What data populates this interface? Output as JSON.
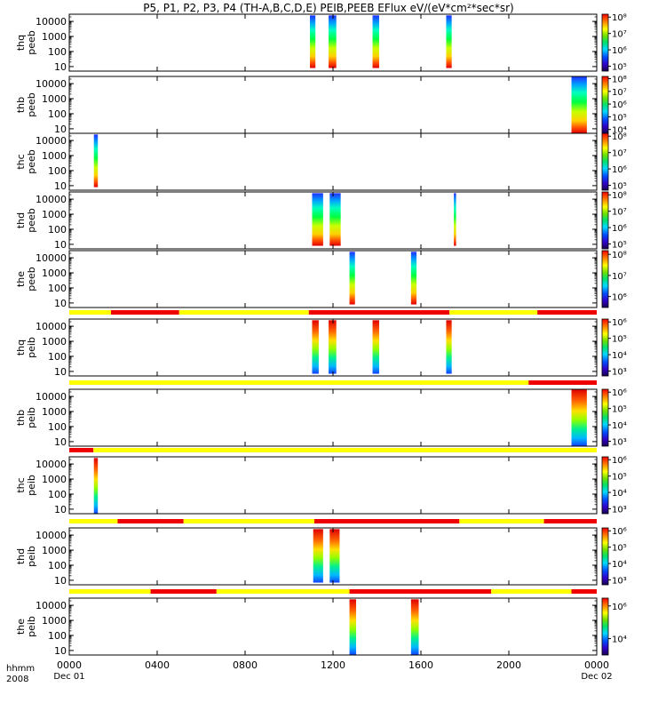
{
  "chart_data": {
    "type": "heatmap",
    "title": "P5, P1, P2, P3, P4 (TH-A,B,C,D,E) PEIB,PEEB EFlux eV/(eV*cm²*sec*sr)",
    "time_axis": {
      "label_top": "hhmm",
      "label_bottom": "2008",
      "range_hours": [
        0,
        24
      ],
      "ticks": [
        {
          "hours": 0,
          "label": "0000",
          "sublabel": "Dec 01"
        },
        {
          "hours": 4,
          "label": "0400",
          "sublabel": ""
        },
        {
          "hours": 8,
          "label": "0800",
          "sublabel": ""
        },
        {
          "hours": 12,
          "label": "1200",
          "sublabel": ""
        },
        {
          "hours": 16,
          "label": "1600",
          "sublabel": ""
        },
        {
          "hours": 20,
          "label": "2000",
          "sublabel": ""
        },
        {
          "hours": 24,
          "label": "0000",
          "sublabel": "Dec 02"
        }
      ]
    },
    "y_axis": {
      "scale": "log",
      "range_eV": [
        5,
        30000
      ],
      "ticks": [
        {
          "value": 10,
          "label": "10"
        },
        {
          "value": 100,
          "label": "100"
        },
        {
          "value": 1000,
          "label": "1000"
        },
        {
          "value": 10000,
          "label": "10000"
        }
      ]
    },
    "mode_bar_colors": {
      "yellow": "#ffff00",
      "red": "#ee0000"
    },
    "panels": [
      {
        "sc": "thq",
        "inst": "peeb",
        "cbar_range": [
          50000.0,
          150000000.0
        ],
        "cbar_ticks": [
          {
            "exp": 8,
            "label": "10⁸"
          },
          {
            "exp": 7,
            "label": "10⁷"
          },
          {
            "exp": 6,
            "label": "10⁶"
          },
          {
            "exp": 5,
            "label": "10⁵"
          }
        ],
        "mode_bar": [],
        "data_blocks": [
          {
            "start_h": 10.95,
            "end_h": 11.2,
            "low_eV": 8,
            "high_eV": 25000
          },
          {
            "start_h": 11.8,
            "end_h": 12.15,
            "low_eV": 8,
            "high_eV": 25000
          },
          {
            "start_h": 13.8,
            "end_h": 14.1,
            "low_eV": 8,
            "high_eV": 25000
          },
          {
            "start_h": 17.15,
            "end_h": 17.4,
            "low_eV": 8,
            "high_eV": 25000
          }
        ]
      },
      {
        "sc": "thb",
        "inst": "peeb",
        "cbar_range": [
          5000.0,
          150000000.0
        ],
        "cbar_ticks": [
          {
            "exp": 8,
            "label": "10⁸"
          },
          {
            "exp": 7,
            "label": "10⁷"
          },
          {
            "exp": 6,
            "label": "10⁶"
          },
          {
            "exp": 5,
            "label": "10⁵"
          },
          {
            "exp": 4,
            "label": "10⁴"
          }
        ],
        "mode_bar": [],
        "data_blocks": [
          {
            "start_h": 22.85,
            "end_h": 23.55,
            "low_eV": 5,
            "high_eV": 30000
          }
        ]
      },
      {
        "sc": "thc",
        "inst": "peeb",
        "cbar_range": [
          50000.0,
          150000000.0
        ],
        "cbar_ticks": [
          {
            "exp": 8,
            "label": "10⁸"
          },
          {
            "exp": 7,
            "label": "10⁷"
          },
          {
            "exp": 6,
            "label": "10⁶"
          },
          {
            "exp": 5,
            "label": "10⁵"
          }
        ],
        "mode_bar": [],
        "data_blocks": [
          {
            "start_h": 1.12,
            "end_h": 1.3,
            "low_eV": 8,
            "high_eV": 25000
          }
        ]
      },
      {
        "sc": "thd",
        "inst": "peeb",
        "cbar_range": [
          50000.0,
          150000000.0
        ],
        "cbar_ticks": [
          {
            "exp": 8,
            "label": "10⁸"
          },
          {
            "exp": 7,
            "label": "10⁷"
          },
          {
            "exp": 6,
            "label": "10⁶"
          },
          {
            "exp": 5,
            "label": "10⁵"
          }
        ],
        "mode_bar": [],
        "data_blocks": [
          {
            "start_h": 11.05,
            "end_h": 11.55,
            "low_eV": 8,
            "high_eV": 25000
          },
          {
            "start_h": 11.85,
            "end_h": 12.35,
            "low_eV": 8,
            "high_eV": 25000
          },
          {
            "start_h": 17.5,
            "end_h": 17.6,
            "low_eV": 8,
            "high_eV": 25000
          }
        ]
      },
      {
        "sc": "the",
        "inst": "peeb",
        "cbar_range": [
          300000.0,
          150000000.0
        ],
        "cbar_ticks": [
          {
            "exp": 8,
            "label": "10⁸"
          },
          {
            "exp": 7,
            "label": "10⁷"
          },
          {
            "exp": 6,
            "label": "10⁶"
          }
        ],
        "mode_bar": [],
        "data_blocks": [
          {
            "start_h": 12.75,
            "end_h": 13.0,
            "low_eV": 8,
            "high_eV": 25000
          },
          {
            "start_h": 15.55,
            "end_h": 15.8,
            "low_eV": 8,
            "high_eV": 25000
          }
        ]
      },
      {
        "sc": "thq",
        "inst": "peib",
        "cbar_range": [
          500.0,
          1500000.0
        ],
        "cbar_ticks": [
          {
            "exp": 6,
            "label": "10⁶"
          },
          {
            "exp": 5,
            "label": "10⁵"
          },
          {
            "exp": 4,
            "label": "10⁴"
          },
          {
            "exp": 3,
            "label": "10³"
          }
        ],
        "mode_bar": [
          {
            "start_h": 0,
            "end_h": 1.9,
            "color": "yellow"
          },
          {
            "start_h": 1.9,
            "end_h": 5.0,
            "color": "red"
          },
          {
            "start_h": 5.0,
            "end_h": 10.9,
            "color": "yellow"
          },
          {
            "start_h": 10.9,
            "end_h": 17.3,
            "color": "red"
          },
          {
            "start_h": 17.3,
            "end_h": 21.3,
            "color": "yellow"
          },
          {
            "start_h": 21.3,
            "end_h": 24,
            "color": "red"
          }
        ],
        "data_blocks": [
          {
            "start_h": 11.05,
            "end_h": 11.35,
            "low_eV": 7,
            "high_eV": 25000
          },
          {
            "start_h": 11.8,
            "end_h": 12.15,
            "low_eV": 7,
            "high_eV": 25000
          },
          {
            "start_h": 13.8,
            "end_h": 14.1,
            "low_eV": 7,
            "high_eV": 25000
          },
          {
            "start_h": 17.15,
            "end_h": 17.4,
            "low_eV": 7,
            "high_eV": 25000
          }
        ]
      },
      {
        "sc": "thb",
        "inst": "peib",
        "cbar_range": [
          500.0,
          1500000.0
        ],
        "cbar_ticks": [
          {
            "exp": 6,
            "label": "10⁶"
          },
          {
            "exp": 5,
            "label": "10⁵"
          },
          {
            "exp": 4,
            "label": "10⁴"
          },
          {
            "exp": 3,
            "label": "10³"
          }
        ],
        "mode_bar": [
          {
            "start_h": 0,
            "end_h": 20.9,
            "color": "yellow"
          },
          {
            "start_h": 20.9,
            "end_h": 24,
            "color": "red"
          }
        ],
        "data_blocks": [
          {
            "start_h": 22.85,
            "end_h": 23.55,
            "low_eV": 5,
            "high_eV": 30000
          }
        ]
      },
      {
        "sc": "thc",
        "inst": "peib",
        "cbar_range": [
          500.0,
          1500000.0
        ],
        "cbar_ticks": [
          {
            "exp": 6,
            "label": "10⁶"
          },
          {
            "exp": 5,
            "label": "10⁵"
          },
          {
            "exp": 4,
            "label": "10⁴"
          },
          {
            "exp": 3,
            "label": "10³"
          }
        ],
        "mode_bar": [
          {
            "start_h": 0,
            "end_h": 1.1,
            "color": "red"
          },
          {
            "start_h": 1.1,
            "end_h": 24,
            "color": "yellow"
          }
        ],
        "data_blocks": [
          {
            "start_h": 1.12,
            "end_h": 1.3,
            "low_eV": 5,
            "high_eV": 25000
          }
        ]
      },
      {
        "sc": "thd",
        "inst": "peib",
        "cbar_range": [
          500.0,
          1500000.0
        ],
        "cbar_ticks": [
          {
            "exp": 6,
            "label": "10⁶"
          },
          {
            "exp": 5,
            "label": "10⁵"
          },
          {
            "exp": 4,
            "label": "10⁴"
          },
          {
            "exp": 3,
            "label": "10³"
          }
        ],
        "mode_bar": [
          {
            "start_h": 0,
            "end_h": 2.2,
            "color": "yellow"
          },
          {
            "start_h": 2.2,
            "end_h": 5.2,
            "color": "red"
          },
          {
            "start_h": 5.2,
            "end_h": 11.15,
            "color": "yellow"
          },
          {
            "start_h": 11.15,
            "end_h": 17.75,
            "color": "red"
          },
          {
            "start_h": 17.75,
            "end_h": 21.6,
            "color": "yellow"
          },
          {
            "start_h": 21.6,
            "end_h": 24,
            "color": "red"
          }
        ],
        "data_blocks": [
          {
            "start_h": 11.1,
            "end_h": 11.55,
            "low_eV": 7,
            "high_eV": 25000
          },
          {
            "start_h": 11.85,
            "end_h": 12.3,
            "low_eV": 7,
            "high_eV": 25000
          }
        ]
      },
      {
        "sc": "the",
        "inst": "peib",
        "cbar_range": [
          1000.0,
          3000000.0
        ],
        "cbar_ticks": [
          {
            "exp": 6,
            "label": "10⁶"
          },
          {
            "exp": 4,
            "label": "10⁴"
          }
        ],
        "mode_bar": [
          {
            "start_h": 0,
            "end_h": 3.7,
            "color": "yellow"
          },
          {
            "start_h": 3.7,
            "end_h": 6.7,
            "color": "red"
          },
          {
            "start_h": 6.7,
            "end_h": 12.75,
            "color": "yellow"
          },
          {
            "start_h": 12.75,
            "end_h": 19.2,
            "color": "red"
          },
          {
            "start_h": 19.2,
            "end_h": 22.85,
            "color": "yellow"
          },
          {
            "start_h": 22.85,
            "end_h": 24,
            "color": "red"
          }
        ],
        "data_blocks": [
          {
            "start_h": 12.75,
            "end_h": 13.05,
            "low_eV": 5,
            "high_eV": 25000
          },
          {
            "start_h": 15.55,
            "end_h": 15.9,
            "low_eV": 5,
            "high_eV": 25000
          }
        ]
      }
    ]
  }
}
